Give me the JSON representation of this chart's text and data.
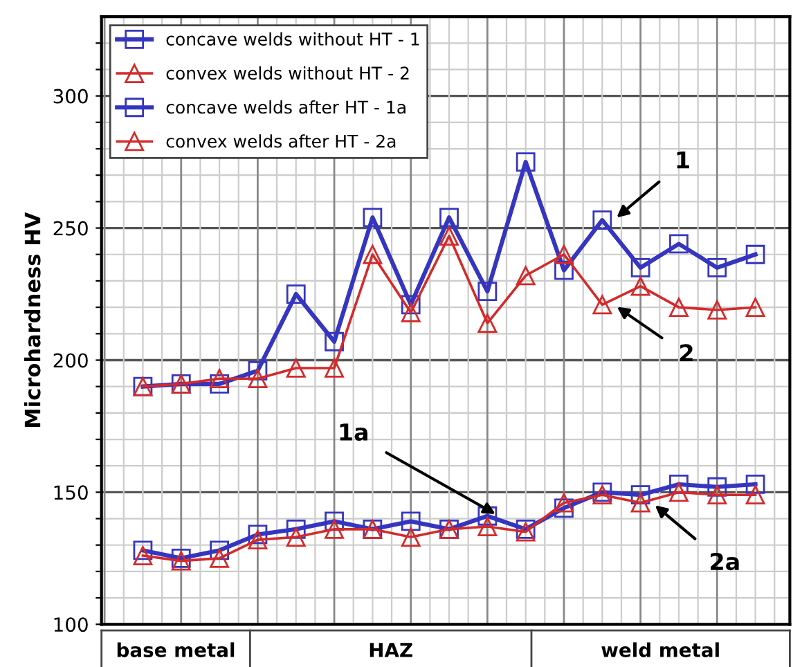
{
  "chart_data": {
    "type": "line",
    "ylabel": "Microhardness HV",
    "categories": [
      null,
      null,
      null,
      null,
      null,
      null,
      null,
      null,
      null,
      null,
      null,
      null,
      null,
      null,
      null,
      null,
      null
    ],
    "series": [
      {
        "name": "concave welds without HT - 1",
        "color": "#3535c0",
        "marker": "square",
        "values": [
          190,
          191,
          191,
          196,
          225,
          207,
          254,
          221,
          254,
          226,
          275,
          234,
          253,
          235,
          244,
          235,
          240
        ]
      },
      {
        "name": "convex welds without HT - 2",
        "color": "#d42a2a",
        "marker": "triangle",
        "values": [
          190,
          191,
          193,
          193,
          197,
          197,
          240,
          218,
          247,
          214,
          232,
          240,
          221,
          228,
          220,
          219,
          220
        ]
      },
      {
        "name": "concave welds after HT - 1a",
        "color": "#3535c0",
        "marker": "square",
        "values": [
          128,
          125,
          128,
          134,
          136,
          139,
          136,
          139,
          136,
          141,
          136,
          144,
          150,
          149,
          153,
          152,
          153
        ]
      },
      {
        "name": "convex welds after HT - 2a",
        "color": "#d42a2a",
        "marker": "triangle",
        "values": [
          126,
          124,
          125,
          132,
          133,
          136,
          136,
          133,
          136,
          137,
          135,
          146,
          149,
          146,
          150,
          149,
          149
        ]
      }
    ],
    "ylim": [
      100,
      330
    ],
    "yticks": [
      100,
      {
        "value": 110,
        "label": null
      },
      {
        "value": 120,
        "label": null
      },
      {
        "value": 130,
        "label": null
      },
      {
        "value": 140,
        "label": null
      },
      150,
      {
        "value": 160,
        "label": null
      },
      {
        "value": 170,
        "label": null
      },
      {
        "value": 180,
        "label": null
      },
      {
        "value": 190,
        "label": null
      },
      200,
      {
        "value": 210,
        "label": null
      },
      {
        "value": 220,
        "label": null
      },
      {
        "value": 230,
        "label": null
      },
      {
        "value": 240,
        "label": null
      },
      250,
      {
        "value": 260,
        "label": null
      },
      {
        "value": 270,
        "label": null
      },
      {
        "value": 280,
        "label": null
      },
      {
        "value": 290,
        "label": null
      },
      300,
      {
        "value": 310,
        "label": null
      },
      {
        "value": 320,
        "label": null
      }
    ],
    "grid": true,
    "legend": "top left",
    "line_style": "solid",
    "annotations": [
      "1",
      "2",
      "1a",
      "2a",
      "base metal",
      "HAZ",
      "weld metal"
    ]
  }
}
